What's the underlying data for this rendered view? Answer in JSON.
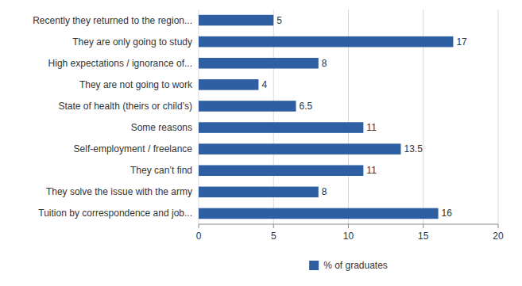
{
  "chart_data": {
    "type": "bar",
    "orientation": "horizontal",
    "categories": [
      "Tuition by correspondence and job...",
      "They solve the issue with the army",
      "They can’t find",
      "Self-employment / freelance",
      "Some reasons",
      "State of health (theirs or child’s)",
      "They are not going to work",
      "High expectations / ignorance of...",
      "They are only going to study",
      "Recently they returned to the region..."
    ],
    "series": [
      {
        "name": "% of graduates",
        "color": "#2E5FA3",
        "values": [
          16,
          8,
          11,
          13.5,
          11,
          6.5,
          4,
          8,
          17,
          5
        ]
      }
    ],
    "xlim": [
      0,
      20
    ],
    "xticks": [
      0,
      5,
      10,
      15,
      20
    ],
    "grid": true,
    "data_labels": true,
    "legend": "bottom"
  }
}
